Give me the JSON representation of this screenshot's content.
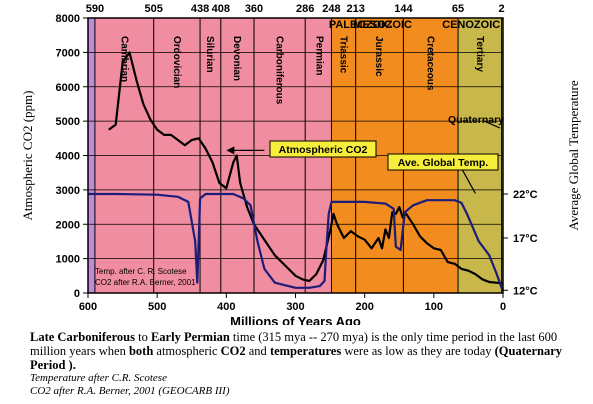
{
  "chart_data": {
    "type": "line",
    "xlabel": "Millions of Years Ago",
    "ylabel_left": "Atmospheric CO2 (ppm)",
    "ylabel_right": "Average Global Temperature",
    "x_ticks": [
      "600",
      "500",
      "400",
      "300",
      "200",
      "100",
      "0"
    ],
    "x_tick_values": [
      600,
      500,
      400,
      300,
      200,
      100,
      0
    ],
    "y_ticks": [
      "0",
      "1000",
      "2000",
      "3000",
      "4000",
      "5000",
      "6000",
      "7000",
      "8000"
    ],
    "y_tick_values": [
      0,
      1000,
      2000,
      3000,
      4000,
      5000,
      6000,
      7000,
      8000
    ],
    "y2_ticks": [
      {
        "label": "22°C",
        "ppm": 2880
      },
      {
        "label": "17°C",
        "ppm": 1600
      },
      {
        "label": "12°C",
        "ppm": 80
      }
    ],
    "xlim": [
      600,
      0
    ],
    "ylim": [
      0,
      8000
    ],
    "top_boundaries": [
      {
        "label": "590",
        "x": 590
      },
      {
        "label": "505",
        "x": 505
      },
      {
        "label": "438",
        "x": 438
      },
      {
        "label": "408",
        "x": 408
      },
      {
        "label": "360",
        "x": 360
      },
      {
        "label": "286",
        "x": 286
      },
      {
        "label": "248",
        "x": 248
      },
      {
        "label": "213",
        "x": 213
      },
      {
        "label": "144",
        "x": 144
      },
      {
        "label": "65",
        "x": 65
      },
      {
        "label": "2",
        "x": 2
      }
    ],
    "eras": [
      {
        "name": "PALEOZOIC",
        "start": 590,
        "end": 248,
        "color": "#f08da0"
      },
      {
        "name": "MESOZOIC",
        "start": 248,
        "end": 65,
        "color": "#f28c1e"
      },
      {
        "name": "CENOZOIC",
        "start": 65,
        "end": 0,
        "color": "#c8b74a"
      }
    ],
    "pre_band": {
      "start": 600,
      "end": 590,
      "color": "#c08ad6"
    },
    "periods": [
      {
        "name": "Cambrian",
        "x": 548
      },
      {
        "name": "Ordovician",
        "x": 472
      },
      {
        "name": "Silurian",
        "x": 424
      },
      {
        "name": "Devonian",
        "x": 385
      },
      {
        "name": "Carboniferous",
        "x": 324
      },
      {
        "name": "Permian",
        "x": 266
      },
      {
        "name": "Triassic",
        "x": 231
      },
      {
        "name": "Jurassic",
        "x": 180
      },
      {
        "name": "Cretaceous",
        "x": 105
      },
      {
        "name": "Tertiary",
        "x": 34
      }
    ],
    "series": [
      {
        "name": "Atmospheric CO2",
        "color": "#000000",
        "points": [
          [
            570,
            4750
          ],
          [
            560,
            4900
          ],
          [
            550,
            6700
          ],
          [
            540,
            7000
          ],
          [
            530,
            6200
          ],
          [
            520,
            5500
          ],
          [
            510,
            5050
          ],
          [
            500,
            4750
          ],
          [
            490,
            4600
          ],
          [
            480,
            4600
          ],
          [
            470,
            4450
          ],
          [
            460,
            4300
          ],
          [
            450,
            4450
          ],
          [
            440,
            4500
          ],
          [
            430,
            4200
          ],
          [
            420,
            3800
          ],
          [
            410,
            3200
          ],
          [
            400,
            3050
          ],
          [
            390,
            3800
          ],
          [
            385,
            4000
          ],
          [
            380,
            3200
          ],
          [
            370,
            2500
          ],
          [
            360,
            2000
          ],
          [
            350,
            1700
          ],
          [
            340,
            1400
          ],
          [
            330,
            1100
          ],
          [
            320,
            900
          ],
          [
            310,
            700
          ],
          [
            300,
            500
          ],
          [
            290,
            400
          ],
          [
            280,
            350
          ],
          [
            270,
            550
          ],
          [
            260,
            950
          ],
          [
            250,
            1800
          ],
          [
            245,
            2300
          ],
          [
            240,
            2000
          ],
          [
            230,
            1600
          ],
          [
            220,
            1800
          ],
          [
            210,
            1650
          ],
          [
            200,
            1550
          ],
          [
            190,
            1300
          ],
          [
            180,
            1600
          ],
          [
            175,
            1300
          ],
          [
            170,
            1850
          ],
          [
            165,
            1600
          ],
          [
            160,
            2350
          ],
          [
            155,
            2300
          ],
          [
            150,
            2500
          ],
          [
            145,
            2200
          ],
          [
            140,
            2300
          ],
          [
            130,
            2000
          ],
          [
            120,
            1650
          ],
          [
            110,
            1450
          ],
          [
            100,
            1300
          ],
          [
            90,
            1250
          ],
          [
            80,
            900
          ],
          [
            70,
            850
          ],
          [
            60,
            700
          ],
          [
            50,
            650
          ],
          [
            40,
            550
          ],
          [
            30,
            400
          ],
          [
            20,
            320
          ],
          [
            10,
            300
          ],
          [
            0,
            280
          ]
        ]
      },
      {
        "name": "Ave. Global Temp.",
        "color": "#1c1c7a",
        "points": [
          [
            600,
            2880
          ],
          [
            560,
            2880
          ],
          [
            500,
            2860
          ],
          [
            470,
            2800
          ],
          [
            455,
            2650
          ],
          [
            445,
            1500
          ],
          [
            442,
            300
          ],
          [
            438,
            2750
          ],
          [
            430,
            2880
          ],
          [
            390,
            2880
          ],
          [
            375,
            2750
          ],
          [
            365,
            2550
          ],
          [
            355,
            1500
          ],
          [
            345,
            700
          ],
          [
            330,
            300
          ],
          [
            300,
            150
          ],
          [
            280,
            150
          ],
          [
            265,
            200
          ],
          [
            258,
            350
          ],
          [
            255,
            1400
          ],
          [
            252,
            2300
          ],
          [
            248,
            2650
          ],
          [
            200,
            2650
          ],
          [
            170,
            2600
          ],
          [
            158,
            2450
          ],
          [
            155,
            1350
          ],
          [
            148,
            1250
          ],
          [
            142,
            2350
          ],
          [
            130,
            2550
          ],
          [
            110,
            2700
          ],
          [
            70,
            2700
          ],
          [
            60,
            2620
          ],
          [
            52,
            2300
          ],
          [
            35,
            1500
          ],
          [
            20,
            1100
          ],
          [
            10,
            600
          ],
          [
            2,
            150
          ],
          [
            0,
            80
          ]
        ]
      }
    ],
    "annotations": {
      "co2_box": "Atmospheric CO2",
      "temp_box": "Ave. Global Temp.",
      "quaternary": "Quaternary",
      "source_1": "Temp. after C. R. Scotese",
      "source_2": "CO2 after R.A. Berner, 2001"
    }
  },
  "caption": {
    "p1": "Late Carboniferous to Early Permian time (315 mya -- 270 mya) is the only time period in the last 600 million years when both atmospheric CO2 and temperatures were as low as they are today (Quaternary Period ).",
    "note1": "Temperature after C.R. Scotese",
    "note2": "CO2 after R.A. Berner, 2001 (GEOCARB III)"
  }
}
